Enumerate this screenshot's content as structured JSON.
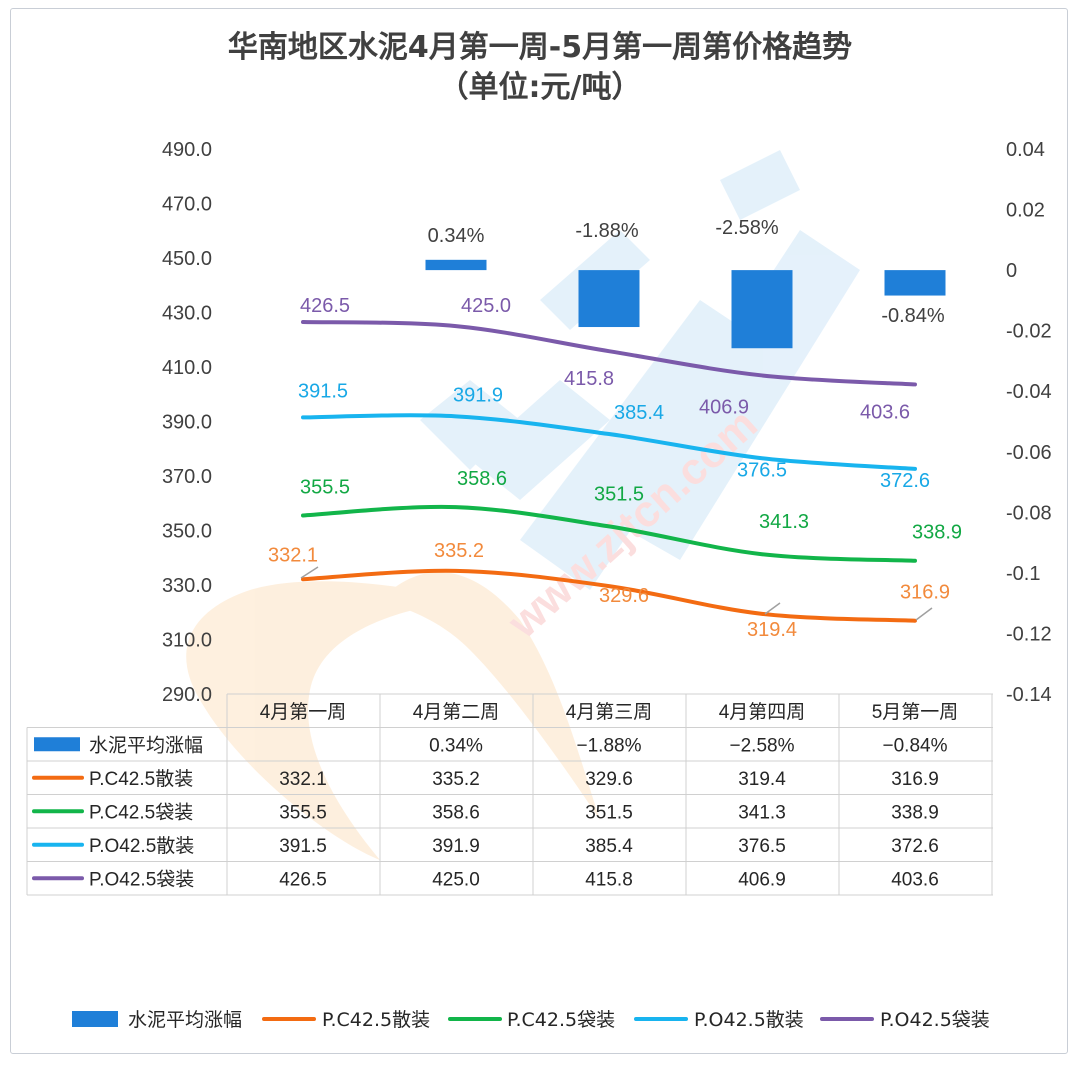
{
  "title_line1": "华南地区水泥4月第一周-5月第一周第价格趋势",
  "title_line2": "（单位:元/吨）",
  "chart_data": {
    "type": "line",
    "title": "华南地区水泥4月第一周-5月第一周第价格趋势（单位:元/吨）",
    "categories": [
      "4月第一周",
      "4月第二周",
      "4月第三周",
      "4月第四周",
      "5月第一周"
    ],
    "y_left_ticks": [
      "490.0",
      "470.0",
      "450.0",
      "430.0",
      "410.0",
      "390.0",
      "370.0",
      "350.0",
      "330.0",
      "310.0",
      "290.0"
    ],
    "y_left_range": [
      290,
      490
    ],
    "y_right_ticks": [
      "0.04",
      "0.02",
      "0",
      "-0.02",
      "-0.04",
      "-0.06",
      "-0.08",
      "-0.1",
      "-0.12",
      "-0.14"
    ],
    "y_right_range": [
      -0.14,
      0.04
    ],
    "grid": false,
    "legend_position": "bottom",
    "bar_series": {
      "name": "水泥平均涨幅",
      "type": "bar",
      "axis": "right",
      "color": "#1f7fd8",
      "values": [
        0,
        0.0034,
        -0.0188,
        -0.0258,
        -0.0084
      ],
      "labels": [
        "",
        "0.34%",
        "-1.88%",
        "-2.58%",
        "-0.84%"
      ],
      "table_labels": [
        "",
        "0.34%",
        "−1.88%",
        "−2.58%",
        "−0.84%"
      ]
    },
    "series": [
      {
        "name": "P.C42.5散装",
        "color": "#f36b12",
        "values": [
          332.1,
          335.2,
          329.6,
          319.4,
          316.9
        ],
        "labels": [
          "332.1",
          "335.2",
          "329.6",
          "319.4",
          "316.9"
        ],
        "label_color": "#f28a3c"
      },
      {
        "name": "P.C42.5袋装",
        "color": "#12b54a",
        "values": [
          355.5,
          358.6,
          351.5,
          341.3,
          338.9
        ],
        "labels": [
          "355.5",
          "358.6",
          "351.5",
          "341.3",
          "338.9"
        ],
        "label_color": "#12a844"
      },
      {
        "name": "P.O42.5散装",
        "color": "#18b4ef",
        "values": [
          391.5,
          391.9,
          385.4,
          376.5,
          372.6
        ],
        "labels": [
          "391.5",
          "391.9",
          "385.4",
          "376.5",
          "372.6"
        ],
        "label_color": "#18a8e6"
      },
      {
        "name": "P.O42.5袋装",
        "color": "#7b5aaa",
        "values": [
          426.5,
          425.0,
          415.8,
          406.9,
          403.6
        ],
        "labels": [
          "426.5",
          "425.0",
          "415.8",
          "406.9",
          "403.6"
        ],
        "label_color": "#7b5aaa"
      }
    ]
  },
  "watermark": {
    "text": "www.zjtcn.com"
  }
}
